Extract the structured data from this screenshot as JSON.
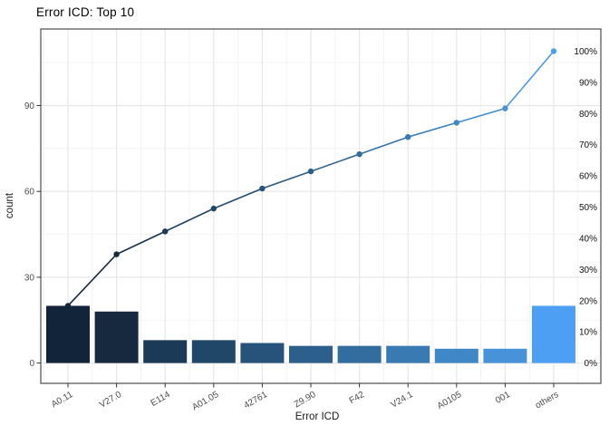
{
  "chart_data": {
    "type": "pareto",
    "title": "Error ICD: Top 10",
    "xlabel": "Error ICD",
    "ylabel": "count",
    "categories": [
      "A0.11",
      "V27.0",
      "E114",
      "A01.05",
      "42761",
      "Z9.90",
      "F42",
      "V24.1",
      "A0105",
      "001",
      "others"
    ],
    "values": [
      20,
      18,
      8,
      8,
      7,
      6,
      6,
      6,
      5,
      5,
      20
    ],
    "total": 109,
    "cumulative_counts": [
      20,
      38,
      46,
      54,
      61,
      67,
      73,
      79,
      84,
      89,
      109
    ],
    "cumulative_pct": [
      18.3,
      34.9,
      42.2,
      49.5,
      56.0,
      61.5,
      67.0,
      72.5,
      77.1,
      81.7,
      100.0
    ],
    "y_axis_ticks": [
      0,
      30,
      60,
      90
    ],
    "y2_axis_ticks_pct": [
      0,
      10,
      20,
      30,
      40,
      50,
      60,
      70,
      80,
      90,
      100
    ],
    "y2_tick_suffix": "%",
    "ylim": [
      0,
      115
    ],
    "grid": true,
    "legend": "none",
    "bar_colors": [
      "#12243a",
      "#16293f",
      "#1b3a57",
      "#214768",
      "#275279",
      "#2d5f8c",
      "#336c9e",
      "#3a7ab2",
      "#4088c5",
      "#4792d8",
      "#4c9ff2"
    ],
    "line_gradient": [
      "#12243a",
      "#4c9ff2"
    ],
    "panel_border_color": "#4d4d4d",
    "grid_major_color": "#e7e7e7",
    "grid_minor_color": "#f0f0f0",
    "tick_mark_color": "#333333",
    "tick_label_color": "#4d4d4d",
    "right_label_color": "#111111"
  }
}
